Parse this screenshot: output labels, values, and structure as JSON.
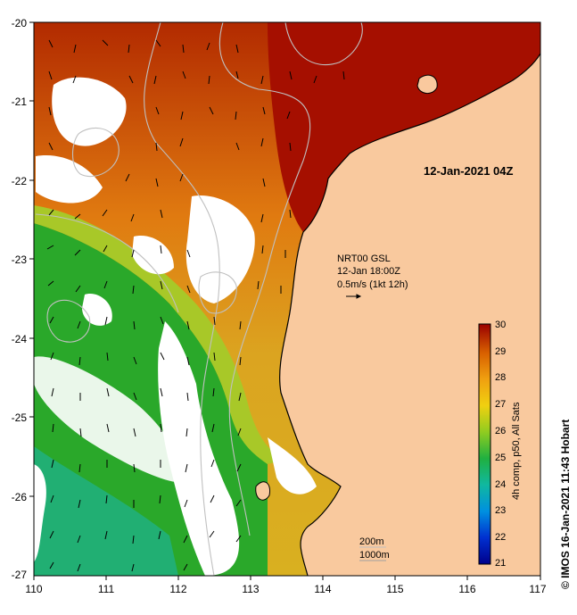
{
  "map": {
    "timestamp": "12-Jan-2021 04Z",
    "current_info": {
      "line1": "NRT00 GSL",
      "line2": "12-Jan 18:00Z",
      "line3": "0.5m/s (1kt 12h)"
    },
    "contours": {
      "label1": "200m",
      "label2": "1000m"
    },
    "x_ticks": [
      "110",
      "111",
      "112",
      "113",
      "114",
      "115",
      "116",
      "117"
    ],
    "y_ticks": [
      "-20",
      "-21",
      "-22",
      "-23",
      "-24",
      "-25",
      "-26",
      "-27"
    ],
    "colorbar": {
      "ticks": [
        "30",
        "29",
        "28",
        "27",
        "26",
        "25",
        "24",
        "23",
        "22",
        "21"
      ],
      "label": "4h comp, p50, All Sats"
    },
    "credit": "© IMOS 16-Jan-2021 11:43 Hobart",
    "colors": {
      "land": "#f9c99e",
      "warm": "#a50f00",
      "cool": "#00b04a"
    }
  }
}
